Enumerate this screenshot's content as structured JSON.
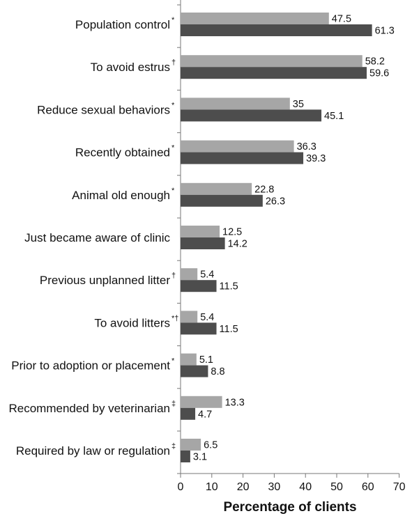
{
  "chart_data": {
    "type": "bar",
    "orientation": "horizontal",
    "categories": [
      "Population control",
      "To avoid estrus",
      "Reduce sexual behaviors",
      "Recently obtained",
      "Animal old enough",
      "Just became aware of clinic",
      "Previous unplanned litter",
      "To avoid litters",
      "Prior to adoption or placement",
      "Recommended by veterinarian",
      "Required by law or regulation"
    ],
    "marks": [
      "*",
      "†",
      "*",
      "*",
      "*",
      "",
      "†",
      "*†",
      "*",
      "‡",
      "‡"
    ],
    "series": [
      {
        "color": "#a6a6a6",
        "values": [
          47.5,
          58.2,
          35,
          36.3,
          22.8,
          12.5,
          5.4,
          5.4,
          5.1,
          13.3,
          6.5
        ]
      },
      {
        "color": "#4d4d4d",
        "values": [
          61.3,
          59.6,
          45.1,
          39.3,
          26.3,
          14.2,
          11.5,
          11.5,
          8.8,
          4.7,
          3.1
        ]
      }
    ],
    "value_labels": [
      [
        "47.5",
        "58.2",
        "35",
        "36.3",
        "22.8",
        "12.5",
        "5.4",
        "5.4",
        "5.1",
        "13.3",
        "6.5"
      ],
      [
        "61.3",
        "59.6",
        "45.1",
        "39.3",
        "26.3",
        "14.2",
        "11.5",
        "11.5",
        "8.8",
        "4.7",
        "3.1"
      ]
    ],
    "xlabel": "Percentage of clients",
    "ylabel": "",
    "xlim": [
      0,
      70
    ],
    "xticks": [
      0,
      10,
      20,
      30,
      40,
      50,
      60,
      70
    ],
    "grid": false,
    "legend": "none"
  }
}
